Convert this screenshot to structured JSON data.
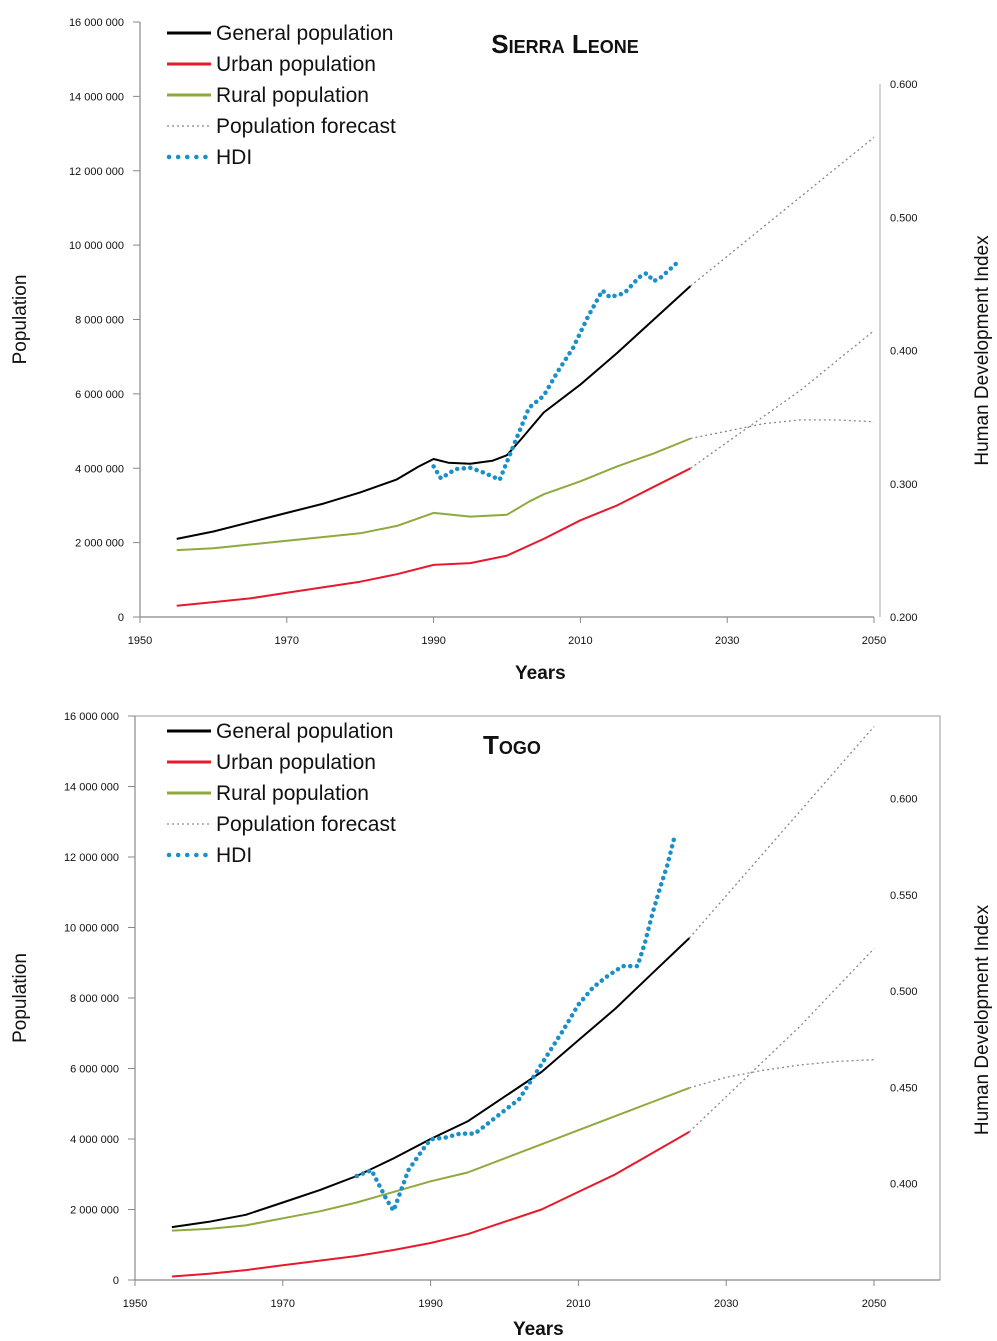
{
  "chart_data": [
    {
      "type": "line",
      "title": "Sierra Leone",
      "xlabel": "Years",
      "ylabel": "Population",
      "y2label": "Human Development Index",
      "xlim": [
        1950,
        2050
      ],
      "ylim": [
        0,
        16000000
      ],
      "y2lim": [
        0.2,
        0.6
      ],
      "x_ticks": [
        "1950",
        "1970",
        "1990",
        "2010",
        "2030",
        "2050"
      ],
      "y_ticks": [
        "0",
        "2 000 000",
        "4 000 000",
        "6 000 000",
        "8 000 000",
        "10 000 000",
        "12 000 000",
        "14 000 000",
        "16 000 000"
      ],
      "y2_ticks": [
        "0.200",
        "0.300",
        "0.400",
        "0.500",
        "0.600"
      ],
      "legend_position": "top-left",
      "series": [
        {
          "name": "General population",
          "axis": "left",
          "color": "#000000",
          "style": "solid",
          "x": [
            1955,
            1960,
            1965,
            1970,
            1975,
            1980,
            1985,
            1988,
            1990,
            1992,
            1995,
            1998,
            2000,
            2002,
            2005,
            2010,
            2015,
            2020,
            2025
          ],
          "y": [
            2100000,
            2300000,
            2550000,
            2800000,
            3050000,
            3350000,
            3700000,
            4050000,
            4250000,
            4150000,
            4120000,
            4200000,
            4350000,
            4800000,
            5500000,
            6250000,
            7100000,
            8000000,
            8900000
          ]
        },
        {
          "name": "Urban population",
          "axis": "left",
          "color": "#e8192c",
          "style": "solid",
          "x": [
            1955,
            1960,
            1965,
            1970,
            1975,
            1980,
            1985,
            1990,
            1995,
            2000,
            2005,
            2010,
            2015,
            2020,
            2025
          ],
          "y": [
            300000,
            400000,
            500000,
            650000,
            800000,
            950000,
            1150000,
            1400000,
            1450000,
            1650000,
            2100000,
            2600000,
            3000000,
            3500000,
            4000000
          ]
        },
        {
          "name": "Rural population",
          "axis": "left",
          "color": "#8faa3c",
          "style": "solid",
          "x": [
            1955,
            1960,
            1965,
            1970,
            1975,
            1980,
            1985,
            1990,
            1995,
            2000,
            2003,
            2005,
            2010,
            2015,
            2020,
            2025
          ],
          "y": [
            1800000,
            1850000,
            1950000,
            2050000,
            2150000,
            2250000,
            2450000,
            2800000,
            2700000,
            2750000,
            3100000,
            3300000,
            3650000,
            4050000,
            4400000,
            4800000
          ]
        },
        {
          "name": "Population forecast",
          "axis": "left",
          "color": "#888888",
          "style": "dotted",
          "segments": [
            {
              "x": [
                2025,
                2030,
                2035,
                2040,
                2045,
                2050
              ],
              "y": [
                8900000,
                9700000,
                10500000,
                11300000,
                12100000,
                12900000
              ]
            },
            {
              "x": [
                2025,
                2030,
                2035,
                2040,
                2045,
                2050
              ],
              "y": [
                4000000,
                4700000,
                5400000,
                6100000,
                6900000,
                7700000
              ]
            },
            {
              "x": [
                2025,
                2030,
                2035,
                2040,
                2045,
                2050
              ],
              "y": [
                4800000,
                5000000,
                5200000,
                5300000,
                5300000,
                5250000
              ]
            }
          ]
        },
        {
          "name": "HDI",
          "axis": "right",
          "color": "#1b8fc9",
          "style": "dotted",
          "x": [
            1990,
            1991,
            1993,
            1995,
            1997,
            1999,
            2001,
            2003,
            2005,
            2007,
            2009,
            2011,
            2013,
            2014,
            2016,
            2018,
            2019,
            2020,
            2021,
            2022,
            2023
          ],
          "y": [
            0.313,
            0.304,
            0.311,
            0.312,
            0.308,
            0.303,
            0.33,
            0.357,
            0.366,
            0.385,
            0.402,
            0.425,
            0.445,
            0.44,
            0.443,
            0.455,
            0.458,
            0.452,
            0.455,
            0.46,
            0.465
          ]
        }
      ]
    },
    {
      "type": "line",
      "title": "Togo",
      "xlabel": "Years",
      "ylabel": "Population",
      "y2label": "Human Development Index",
      "xlim": [
        1950,
        2050
      ],
      "ylim": [
        0,
        16000000
      ],
      "y2lim": [
        0.35,
        0.62
      ],
      "x_ticks": [
        "1950",
        "1970",
        "1990",
        "2010",
        "2030",
        "2050"
      ],
      "y_ticks": [
        "0",
        "2 000 000",
        "4 000 000",
        "6 000 000",
        "8 000 000",
        "10 000 000",
        "12 000 000",
        "14 000 000",
        "16 000 000"
      ],
      "y2_ticks": [
        "0.400",
        "0.450",
        "0.500",
        "0.550",
        "0.600"
      ],
      "legend_position": "top-left",
      "series": [
        {
          "name": "General population",
          "axis": "left",
          "color": "#000000",
          "style": "solid",
          "x": [
            1955,
            1960,
            1965,
            1970,
            1975,
            1980,
            1985,
            1990,
            1995,
            2000,
            2005,
            2010,
            2015,
            2020,
            2025
          ],
          "y": [
            1500000,
            1650000,
            1850000,
            2200000,
            2550000,
            2950000,
            3450000,
            4000000,
            4500000,
            5200000,
            5900000,
            6800000,
            7700000,
            8700000,
            9700000
          ]
        },
        {
          "name": "Urban population",
          "axis": "left",
          "color": "#e8192c",
          "style": "solid",
          "x": [
            1955,
            1960,
            1965,
            1970,
            1975,
            1980,
            1985,
            1990,
            1995,
            2000,
            2005,
            2010,
            2015,
            2020,
            2025
          ],
          "y": [
            100000,
            180000,
            280000,
            420000,
            550000,
            680000,
            850000,
            1050000,
            1300000,
            1650000,
            2000000,
            2500000,
            3000000,
            3600000,
            4200000
          ]
        },
        {
          "name": "Rural population",
          "axis": "left",
          "color": "#8faa3c",
          "style": "solid",
          "x": [
            1955,
            1960,
            1965,
            1970,
            1975,
            1980,
            1985,
            1990,
            1995,
            2000,
            2005,
            2010,
            2015,
            2020,
            2025
          ],
          "y": [
            1400000,
            1450000,
            1550000,
            1750000,
            1950000,
            2200000,
            2500000,
            2800000,
            3050000,
            3450000,
            3850000,
            4250000,
            4650000,
            5050000,
            5450000
          ]
        },
        {
          "name": "Population forecast",
          "axis": "left",
          "color": "#888888",
          "style": "dotted",
          "segments": [
            {
              "x": [
                2025,
                2030,
                2035,
                2040,
                2045,
                2050
              ],
              "y": [
                9700000,
                10900000,
                12100000,
                13300000,
                14500000,
                15700000
              ]
            },
            {
              "x": [
                2025,
                2030,
                2035,
                2040,
                2045,
                2050
              ],
              "y": [
                4200000,
                5200000,
                6200000,
                7200000,
                8300000,
                9400000
              ]
            },
            {
              "x": [
                2025,
                2030,
                2035,
                2040,
                2045,
                2050
              ],
              "y": [
                5450000,
                5750000,
                5950000,
                6100000,
                6200000,
                6250000
              ]
            }
          ]
        },
        {
          "name": "HDI",
          "axis": "right",
          "color": "#1b8fc9",
          "style": "dotted",
          "x": [
            1980,
            1982,
            1984,
            1985,
            1987,
            1989,
            1990,
            1992,
            1994,
            1996,
            1998,
            2000,
            2002,
            2004,
            2006,
            2008,
            2010,
            2012,
            2014,
            2016,
            2018,
            2019,
            2020,
            2021,
            2022,
            2023
          ],
          "y": [
            0.404,
            0.407,
            0.392,
            0.386,
            0.407,
            0.418,
            0.423,
            0.424,
            0.426,
            0.426,
            0.432,
            0.438,
            0.444,
            0.456,
            0.468,
            0.48,
            0.493,
            0.502,
            0.508,
            0.513,
            0.513,
            0.525,
            0.54,
            0.553,
            0.565,
            0.58
          ]
        }
      ]
    }
  ]
}
